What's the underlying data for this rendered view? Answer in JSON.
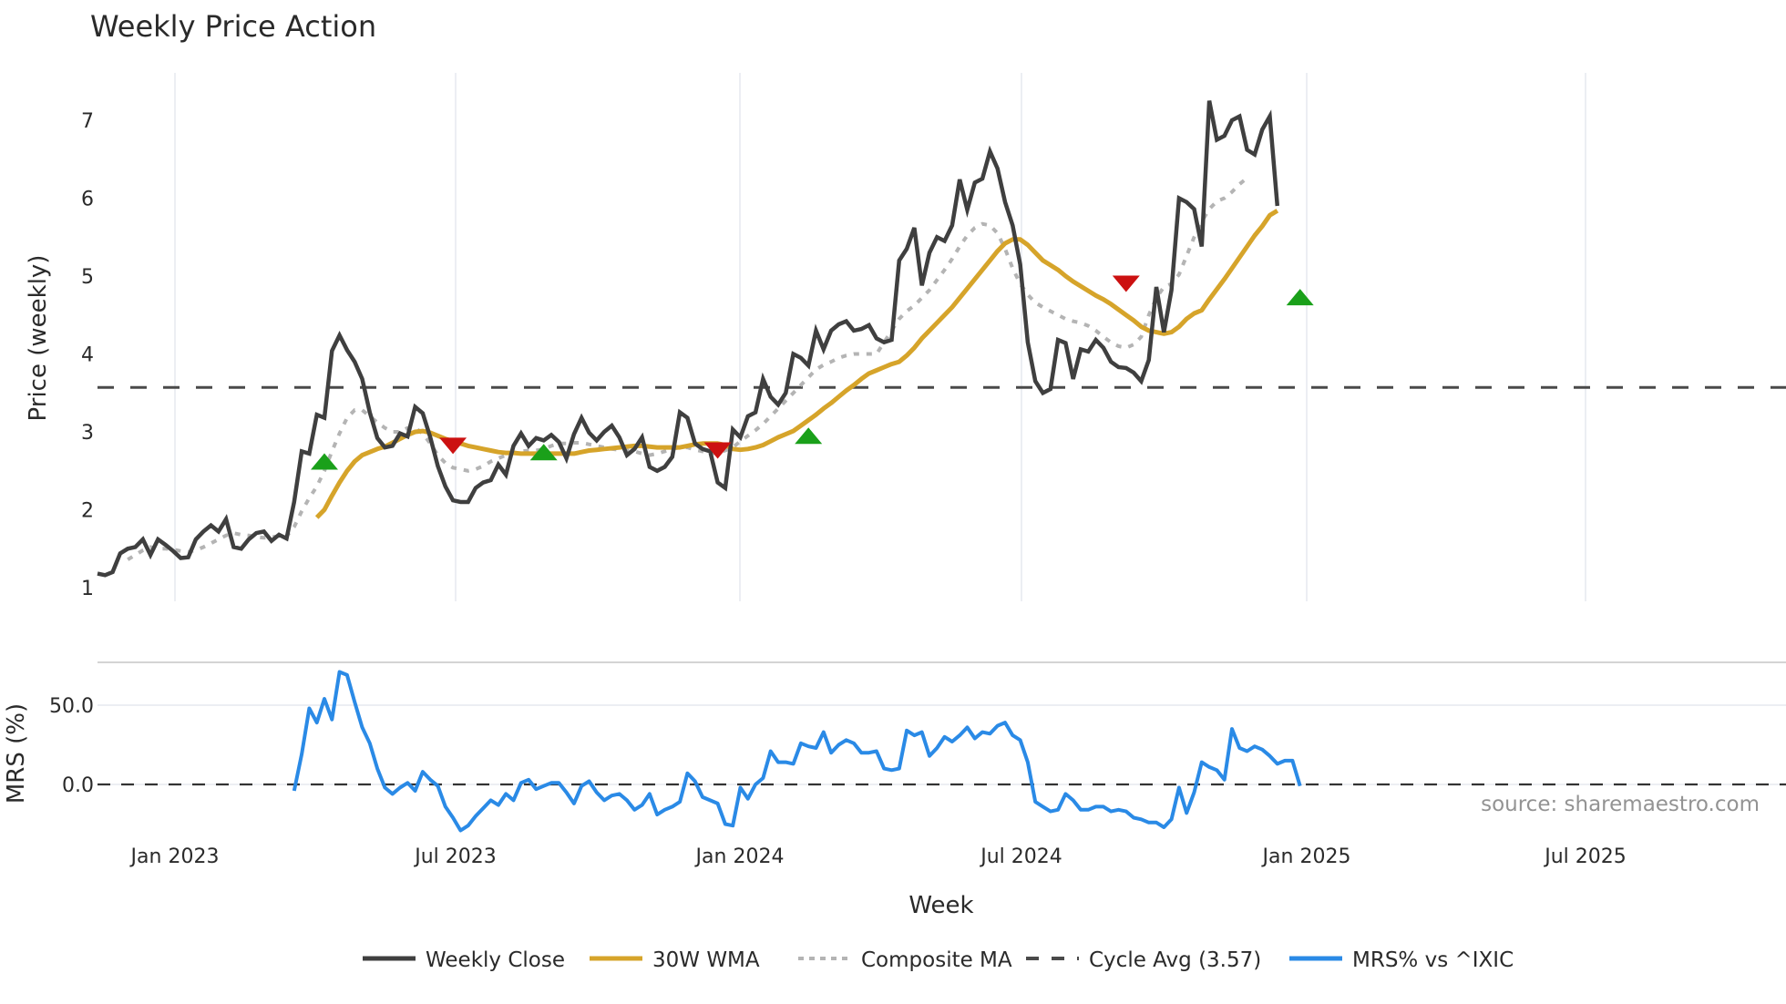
{
  "title": "Weekly Price Action",
  "colors": {
    "close": "#3f3f3f",
    "wma": "#d6a42a",
    "composite": "#b4b4b4",
    "cycle": "#4a4a4a",
    "mrs": "#2a8ae6",
    "buy": "#1aa01a",
    "sell": "#cc1111",
    "grid": "#eceef3",
    "separator": "#d4d4d4"
  },
  "price_panel": {
    "ylabel": "Price (weekly)",
    "yticks": [
      "1",
      "2",
      "3",
      "4",
      "5",
      "6",
      "7"
    ],
    "cycle_avg": 3.57
  },
  "mrs_panel": {
    "ylabel": "MRS (%)",
    "yticks": [
      "0.0",
      "50.0"
    ]
  },
  "xaxis": {
    "label": "Week",
    "ticks": [
      "Jan 2023",
      "Jul 2023",
      "Jan 2024",
      "Jul 2024",
      "Jan 2025",
      "Jul 2025"
    ]
  },
  "legend": [
    {
      "label": "Weekly Close",
      "style": "solid",
      "color": "#3f3f3f"
    },
    {
      "label": "30W WMA",
      "style": "solid",
      "color": "#d6a42a"
    },
    {
      "label": "Composite MA",
      "style": "dotted",
      "color": "#b4b4b4"
    },
    {
      "label": "Cycle Avg (3.57)",
      "style": "dashed",
      "color": "#4a4a4a"
    },
    {
      "label": "MRS% vs ^IXIC",
      "style": "solid",
      "color": "#2a8ae6"
    }
  ],
  "source": "source: sharemaestro.com",
  "chart_data": [
    {
      "type": "line",
      "title": "Weekly Price Action",
      "xlabel": "Week",
      "ylabel": "Price (weekly)",
      "ylim": [
        0.85,
        7.6
      ],
      "x_tick_labels": [
        "Jan 2023",
        "Jul 2023",
        "Jan 2024",
        "Jul 2024",
        "Jan 2025",
        "Jul 2025"
      ],
      "x_range_weeks": [
        0,
        194
      ],
      "grid": "vertical",
      "legend_position": "bottom",
      "series": [
        {
          "name": "Weekly Close",
          "start_week": 0,
          "values": [
            1.18,
            1.16,
            1.2,
            1.44,
            1.5,
            1.52,
            1.62,
            1.42,
            1.62,
            1.55,
            1.47,
            1.38,
            1.39,
            1.62,
            1.72,
            1.8,
            1.72,
            1.88,
            1.52,
            1.5,
            1.62,
            1.7,
            1.72,
            1.6,
            1.68,
            1.63,
            2.1,
            2.75,
            2.72,
            3.22,
            3.18,
            4.04,
            4.24,
            4.05,
            3.9,
            3.68,
            3.25,
            2.92,
            2.8,
            2.82,
            2.98,
            2.94,
            3.32,
            3.24,
            2.93,
            2.56,
            2.3,
            2.12,
            2.1,
            2.1,
            2.28,
            2.35,
            2.38,
            2.58,
            2.45,
            2.82,
            2.98,
            2.82,
            2.92,
            2.89,
            2.96,
            2.87,
            2.66,
            2.97,
            3.18,
            2.99,
            2.89,
            3.0,
            3.08,
            2.93,
            2.7,
            2.78,
            2.93,
            2.55,
            2.5,
            2.55,
            2.68,
            3.25,
            3.18,
            2.85,
            2.78,
            2.75,
            2.35,
            2.28,
            3.03,
            2.93,
            3.2,
            3.25,
            3.68,
            3.45,
            3.35,
            3.5,
            4.0,
            3.95,
            3.85,
            4.3,
            4.06,
            4.3,
            4.38,
            4.42,
            4.3,
            4.32,
            4.37,
            4.2,
            4.15,
            4.18,
            5.2,
            5.35,
            5.62,
            4.88,
            5.3,
            5.5,
            5.45,
            5.65,
            6.24,
            5.85,
            6.2,
            6.25,
            6.6,
            6.38,
            5.95,
            5.65,
            5.15,
            4.15,
            3.65,
            3.5,
            3.55,
            4.18,
            4.14,
            3.68,
            4.06,
            4.03,
            4.18,
            4.08,
            3.9,
            3.83,
            3.82,
            3.76,
            3.65,
            3.92,
            4.86,
            4.28,
            4.82,
            6.0,
            5.95,
            5.86,
            5.38,
            7.25,
            6.75,
            6.8,
            7.0,
            7.05,
            6.62,
            6.56,
            6.88,
            7.05,
            5.9
          ]
        },
        {
          "name": "30W WMA",
          "start_week": 29,
          "values": [
            1.9,
            2.0,
            2.18,
            2.35,
            2.5,
            2.62,
            2.7,
            2.74,
            2.78,
            2.81,
            2.86,
            2.91,
            2.96,
            3.0,
            3.01,
            2.99,
            2.95,
            2.91,
            2.88,
            2.85,
            2.82,
            2.8,
            2.78,
            2.76,
            2.74,
            2.73,
            2.73,
            2.72,
            2.72,
            2.72,
            2.72,
            2.72,
            2.72,
            2.72,
            2.72,
            2.74,
            2.76,
            2.77,
            2.78,
            2.79,
            2.8,
            2.81,
            2.82,
            2.82,
            2.81,
            2.8,
            2.8,
            2.8,
            2.8,
            2.82,
            2.84,
            2.85,
            2.85,
            2.85,
            2.83,
            2.78,
            2.77,
            2.78,
            2.8,
            2.83,
            2.88,
            2.93,
            2.97,
            3.01,
            3.08,
            3.15,
            3.22,
            3.3,
            3.37,
            3.45,
            3.53,
            3.6,
            3.68,
            3.75,
            3.79,
            3.83,
            3.87,
            3.9,
            3.98,
            4.08,
            4.2,
            4.3,
            4.4,
            4.5,
            4.6,
            4.72,
            4.84,
            4.96,
            5.08,
            5.2,
            5.32,
            5.42,
            5.47,
            5.47,
            5.4,
            5.3,
            5.2,
            5.14,
            5.08,
            5.0,
            4.93,
            4.87,
            4.81,
            4.75,
            4.7,
            4.64,
            4.57,
            4.5,
            4.43,
            4.35,
            4.3,
            4.28,
            4.26,
            4.28,
            4.35,
            4.45,
            4.52,
            4.56,
            4.7,
            4.83,
            4.96,
            5.1,
            5.24,
            5.38,
            5.52,
            5.64,
            5.78,
            5.84
          ]
        },
        {
          "name": "Composite MA",
          "start_week": 4,
          "values": [
            1.36,
            1.42,
            1.48,
            1.52,
            1.5,
            1.5,
            1.49,
            1.47,
            1.46,
            1.48,
            1.52,
            1.57,
            1.62,
            1.67,
            1.7,
            1.68,
            1.67,
            1.65,
            1.64,
            1.65,
            1.66,
            1.66,
            1.78,
            1.98,
            2.15,
            2.3,
            2.5,
            2.75,
            2.98,
            3.18,
            3.28,
            3.28,
            3.2,
            3.12,
            3.05,
            3.0,
            3.0,
            3.05,
            3.05,
            2.98,
            2.85,
            2.7,
            2.6,
            2.54,
            2.52,
            2.5,
            2.52,
            2.56,
            2.62,
            2.66,
            2.7,
            2.73,
            2.75,
            2.76,
            2.76,
            2.78,
            2.82,
            2.85,
            2.85,
            2.86,
            2.86,
            2.84,
            2.82,
            2.8,
            2.78,
            2.77,
            2.76,
            2.75,
            2.72,
            2.7,
            2.72,
            2.75,
            2.78,
            2.8,
            2.8,
            2.77,
            2.75,
            2.72,
            2.73,
            2.76,
            2.8,
            2.88,
            2.95,
            3.02,
            3.1,
            3.2,
            3.3,
            3.4,
            3.5,
            3.6,
            3.7,
            3.8,
            3.86,
            3.9,
            3.95,
            3.98,
            4.0,
            4.0,
            4.0,
            4.0,
            4.15,
            4.3,
            4.45,
            4.55,
            4.62,
            4.72,
            4.82,
            4.95,
            5.08,
            5.22,
            5.38,
            5.52,
            5.62,
            5.67,
            5.65,
            5.55,
            5.35,
            5.1,
            4.9,
            4.76,
            4.66,
            4.6,
            4.55,
            4.5,
            4.45,
            4.42,
            4.4,
            4.36,
            4.3,
            4.22,
            4.15,
            4.1,
            4.08,
            4.12,
            4.22,
            4.5,
            4.72,
            4.86,
            4.9,
            5.02,
            5.26,
            5.5,
            5.7,
            5.86,
            5.96,
            6.0,
            6.08,
            6.18,
            6.26
          ]
        },
        {
          "name": "Cycle Avg (3.57)",
          "values": [
            3.57
          ],
          "style": "horizontal dashed"
        }
      ],
      "signals": [
        {
          "type": "buy",
          "week": 30,
          "value": 2.62
        },
        {
          "type": "sell",
          "week": 47,
          "value": 2.82
        },
        {
          "type": "buy",
          "week": 59,
          "value": 2.74
        },
        {
          "type": "sell",
          "week": 82,
          "value": 2.76
        },
        {
          "type": "buy",
          "week": 94,
          "value": 2.95
        },
        {
          "type": "sell",
          "week": 136,
          "value": 4.9
        },
        {
          "type": "buy",
          "week": 159,
          "value": 4.73
        }
      ]
    },
    {
      "type": "line",
      "title": "",
      "xlabel": "Week",
      "ylabel": "MRS (%)",
      "ylim": [
        -36,
        80
      ],
      "ytick_labels": [
        "0.0",
        "50.0"
      ],
      "grid": "horizontal",
      "series": [
        {
          "name": "MRS% vs ^IXIC",
          "start_week": 26,
          "values": [
            -4,
            19,
            48,
            39,
            54,
            41,
            71,
            69,
            52,
            36,
            26,
            10,
            -2,
            -6,
            -2,
            1,
            -4,
            8,
            3,
            -1,
            -14,
            -21,
            -29,
            -26,
            -20,
            -15,
            -10,
            -13,
            -6,
            -10,
            1,
            3,
            -3,
            -1,
            1,
            1,
            -5,
            -12,
            -1,
            2,
            -5,
            -10,
            -7,
            -6,
            -10,
            -16,
            -13,
            -6,
            -19,
            -16,
            -14,
            -11,
            7,
            2,
            -8,
            -10,
            -12,
            -25,
            -26,
            -2,
            -9,
            0,
            4,
            21,
            14,
            14,
            13,
            26,
            24,
            23,
            33,
            20,
            25,
            28,
            26,
            20,
            20,
            21,
            10,
            9,
            10,
            34,
            31,
            33,
            18,
            23,
            30,
            27,
            31,
            36,
            29,
            33,
            32,
            37,
            39,
            31,
            28,
            14,
            -11,
            -14,
            -17,
            -16,
            -6,
            -10,
            -16,
            -16,
            -14,
            -14,
            -17,
            -16,
            -17,
            -21,
            -22,
            -24,
            -24,
            -27,
            -22,
            -2,
            -18,
            -5,
            14,
            11,
            9,
            3,
            35,
            23,
            21,
            24,
            22,
            18,
            13,
            15,
            15,
            -1
          ]
        },
        {
          "name": "Zero line",
          "values": [
            0
          ],
          "style": "horizontal dashed"
        }
      ],
      "annotation": "source: sharemaestro.com"
    }
  ]
}
